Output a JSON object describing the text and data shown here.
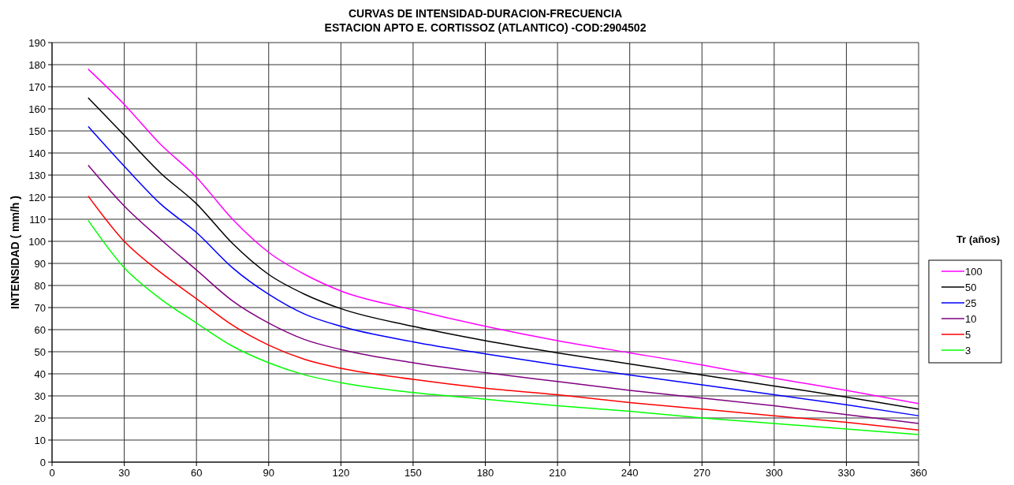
{
  "chart_data": {
    "type": "line",
    "title": "CURVAS DE INTENSIDAD-DURACION-FRECUENCIA",
    "subtitle": "ESTACION APTO E. CORTISSOZ (ATLANTICO) -COD:2904502",
    "ylabel": "INTENSIDAD ( mm/h )",
    "legend_title": "Tr (años)",
    "x": [
      15,
      30,
      45,
      60,
      75,
      90,
      105,
      120,
      150,
      180,
      210,
      240,
      270,
      300,
      330,
      360
    ],
    "series": [
      {
        "name": "100",
        "color": "#ff00ff",
        "values": [
          178,
          162,
          144,
          129,
          110,
          95,
          85,
          77.5,
          69,
          61.5,
          55,
          49.5,
          44,
          38,
          32.5,
          26.5
        ]
      },
      {
        "name": "50",
        "color": "#000000",
        "values": [
          165,
          148,
          131,
          117,
          99,
          85,
          76,
          69.5,
          61.5,
          55,
          49.5,
          44.5,
          39.5,
          34.5,
          29.5,
          24
        ]
      },
      {
        "name": "25",
        "color": "#0000ff",
        "values": [
          152,
          134,
          117,
          104,
          88,
          76,
          67,
          61.5,
          54.5,
          49,
          44,
          39.5,
          35,
          30.5,
          26,
          21
        ]
      },
      {
        "name": "10",
        "color": "#800080",
        "values": [
          134.5,
          116,
          101,
          87,
          73,
          63,
          55.5,
          51,
          45,
          40.5,
          36.5,
          32.5,
          29,
          25.5,
          21.5,
          17.5
        ]
      },
      {
        "name": "5",
        "color": "#ff0000",
        "values": [
          120.5,
          100,
          86,
          74,
          62,
          53,
          46.5,
          42.5,
          37.5,
          33.5,
          30.5,
          27,
          24,
          21,
          18,
          14.5
        ]
      },
      {
        "name": "3",
        "color": "#00ff00",
        "values": [
          109.5,
          88,
          74,
          63,
          52.5,
          45,
          39.5,
          36,
          31.5,
          28.5,
          25.5,
          23,
          20,
          17.5,
          15,
          12.5
        ]
      }
    ],
    "xlim": [
      0,
      360
    ],
    "xticks": [
      0,
      30,
      60,
      90,
      120,
      150,
      180,
      210,
      240,
      270,
      300,
      330,
      360
    ],
    "ylim": [
      0,
      190
    ],
    "yticks": [
      0,
      10,
      20,
      30,
      40,
      50,
      60,
      70,
      80,
      90,
      100,
      110,
      120,
      130,
      140,
      150,
      160,
      170,
      180,
      190
    ],
    "grid": true,
    "legend": "right",
    "marker": "none",
    "line_style": "solid"
  }
}
